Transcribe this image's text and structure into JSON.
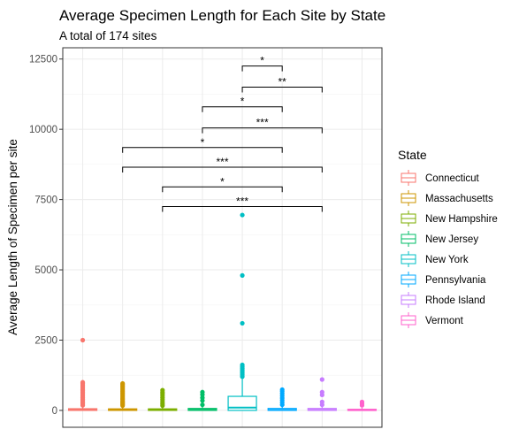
{
  "chart_data": {
    "type": "boxplot",
    "title": "Average Specimen Length for Each Site by State",
    "subtitle": "A total of 174 sites",
    "xlabel": "",
    "ylabel": "Average Length of Specimen per site",
    "ylim": [
      -600,
      12900
    ],
    "yticks": [
      0,
      2500,
      5000,
      7500,
      10000,
      12500
    ],
    "ytick_labels": [
      "0",
      "2500",
      "5000",
      "7500",
      "10000",
      "12500"
    ],
    "grid": true,
    "legend_title": "State",
    "legend_position": "right",
    "series": [
      {
        "name": "Connecticut",
        "color": "#F8766D",
        "q1": 0,
        "median": 15,
        "q3": 60,
        "whisker_low": 0,
        "whisker_high": 130,
        "outliers": [
          180,
          220,
          260,
          300,
          350,
          400,
          450,
          500,
          550,
          600,
          650,
          700,
          750,
          800,
          850,
          900,
          950,
          1000,
          2500
        ]
      },
      {
        "name": "Massachusetts",
        "color": "#CD9600",
        "q1": 0,
        "median": 15,
        "q3": 55,
        "whisker_low": 0,
        "whisker_high": 120,
        "outliers": [
          170,
          210,
          250,
          290,
          330,
          380,
          420,
          470,
          520,
          570,
          620,
          670,
          720,
          770,
          820,
          870,
          920,
          960
        ]
      },
      {
        "name": "New Hampshire",
        "color": "#7CAE00",
        "q1": 0,
        "median": 15,
        "q3": 55,
        "whisker_low": 0,
        "whisker_high": 120,
        "outliers": [
          170,
          230,
          300,
          380,
          450,
          520,
          590,
          650,
          720
        ]
      },
      {
        "name": "New Jersey",
        "color": "#00BE67",
        "q1": 0,
        "median": 20,
        "q3": 70,
        "whisker_low": 0,
        "whisker_high": 150,
        "outliers": [
          200,
          350,
          450,
          560,
          650
        ]
      },
      {
        "name": "New York",
        "color": "#00BFC4",
        "q1": 0,
        "median": 100,
        "q3": 500,
        "whisker_low": 0,
        "whisker_high": 1150,
        "outliers": [
          1200,
          1260,
          1320,
          1380,
          1440,
          1500,
          1560,
          1620,
          3100,
          4800,
          6950
        ]
      },
      {
        "name": "Pennsylvania",
        "color": "#00A9FF",
        "q1": 0,
        "median": 15,
        "q3": 70,
        "whisker_low": 0,
        "whisker_high": 150,
        "outliers": [
          200,
          280,
          360,
          440,
          520,
          600,
          680,
          740
        ]
      },
      {
        "name": "Rhode Island",
        "color": "#C77CFF",
        "q1": 0,
        "median": 20,
        "q3": 70,
        "whisker_low": 0,
        "whisker_high": 150,
        "outliers": [
          200,
          300,
          550,
          650,
          1100
        ]
      },
      {
        "name": "Vermont",
        "color": "#FF61CC",
        "q1": 0,
        "median": 10,
        "q3": 40,
        "whisker_low": 0,
        "whisker_high": 90,
        "outliers": [
          180,
          240,
          300
        ]
      }
    ],
    "significance": [
      {
        "from": 4,
        "to": 5,
        "y": 12250,
        "label": "*"
      },
      {
        "from": 4,
        "to": 6,
        "y": 11500,
        "label": "**"
      },
      {
        "from": 3,
        "to": 5,
        "y": 10800,
        "label": "*"
      },
      {
        "from": 3,
        "to": 6,
        "y": 10050,
        "label": "***"
      },
      {
        "from": 1,
        "to": 5,
        "y": 9350,
        "label": "*"
      },
      {
        "from": 1,
        "to": 6,
        "y": 8650,
        "label": "***"
      },
      {
        "from": 2,
        "to": 5,
        "y": 7950,
        "label": "*"
      },
      {
        "from": 2,
        "to": 6,
        "y": 7250,
        "label": "***"
      }
    ]
  }
}
